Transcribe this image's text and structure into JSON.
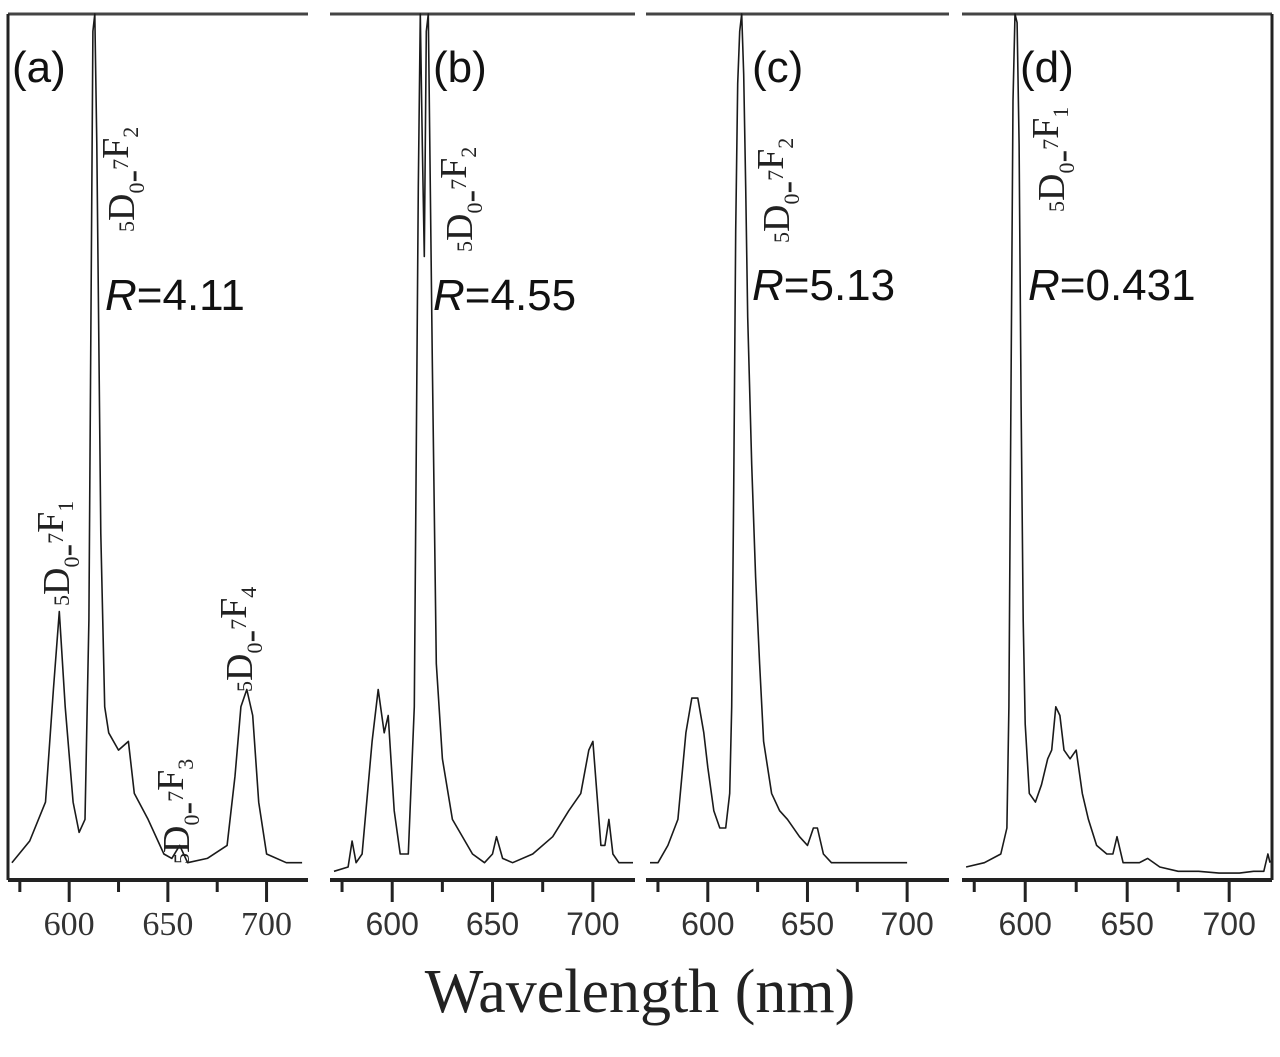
{
  "chart_data": {
    "type": "line",
    "xlabel": "Wavelength (nm)",
    "ylabel": "",
    "grid": false,
    "line_color": "#1a1a1a",
    "panels": [
      {
        "label": "(a)",
        "ratio_prefix": "R",
        "ratio_value": "=4.11",
        "xlim": [
          569,
          721
        ],
        "xticks": [
          600,
          650,
          700
        ],
        "minor_ticks": [
          575,
          625,
          675
        ],
        "annotations": [
          {
            "pre": "5",
            "mid": "D",
            "sub1": "0",
            "dash": "-",
            "sup2": "7",
            "f": "F",
            "sub2": "2"
          },
          {
            "pre": "5",
            "mid": "D",
            "sub1": "0",
            "dash": "-",
            "sup2": "7",
            "f": "F",
            "sub2": "1"
          },
          {
            "pre": "5",
            "mid": "D",
            "sub1": "0",
            "dash": "-",
            "sup2": "7",
            "f": "F",
            "sub2": "3"
          },
          {
            "pre": "5",
            "mid": "D",
            "sub1": "0",
            "dash": "-",
            "sup2": "7",
            "f": "F",
            "sub2": "4"
          }
        ],
        "x": [
          571,
          580,
          588,
          592,
          595,
          598,
          602,
          605,
          608,
          610,
          612,
          613,
          614,
          616,
          618,
          620,
          625,
          630,
          633,
          640,
          648,
          652,
          656,
          660,
          670,
          680,
          684,
          687,
          690,
          693,
          696,
          700,
          710,
          718
        ],
        "y": [
          0.02,
          0.045,
          0.09,
          0.22,
          0.31,
          0.2,
          0.09,
          0.055,
          0.07,
          0.3,
          0.98,
          1.0,
          0.85,
          0.4,
          0.2,
          0.17,
          0.15,
          0.16,
          0.1,
          0.07,
          0.03,
          0.025,
          0.04,
          0.02,
          0.025,
          0.04,
          0.12,
          0.2,
          0.22,
          0.19,
          0.09,
          0.03,
          0.02,
          0.02
        ]
      },
      {
        "label": "(b)",
        "ratio_prefix": "R",
        "ratio_value": "=4.55",
        "xlim": [
          569,
          721
        ],
        "xticks": [
          600,
          650,
          700
        ],
        "minor_ticks": [
          575,
          625,
          675
        ],
        "annotations": [
          {
            "pre": "5",
            "mid": "D",
            "sub1": "0",
            "dash": "-",
            "sup2": "7",
            "f": "F",
            "sub2": "2"
          }
        ],
        "x": [
          571,
          578,
          580,
          582,
          585,
          590,
          593,
          596,
          598,
          601,
          604,
          608,
          611,
          613,
          614,
          615,
          616,
          617,
          618,
          620,
          622,
          625,
          630,
          640,
          646,
          650,
          652,
          655,
          660,
          670,
          680,
          688,
          694,
          698,
          700,
          702,
          704,
          706,
          708,
          710,
          713,
          720
        ],
        "y": [
          0.01,
          0.015,
          0.045,
          0.02,
          0.03,
          0.16,
          0.22,
          0.17,
          0.19,
          0.08,
          0.03,
          0.03,
          0.2,
          0.8,
          1.0,
          0.85,
          0.72,
          0.98,
          1.0,
          0.6,
          0.25,
          0.14,
          0.07,
          0.03,
          0.02,
          0.03,
          0.05,
          0.025,
          0.02,
          0.03,
          0.05,
          0.08,
          0.1,
          0.15,
          0.16,
          0.1,
          0.04,
          0.04,
          0.07,
          0.03,
          0.02,
          0.02
        ]
      },
      {
        "label": "(c)",
        "ratio_prefix": "R",
        "ratio_value": "=5.13",
        "xlim": [
          569,
          721
        ],
        "xticks": [
          600,
          650,
          700
        ],
        "minor_ticks": [
          575,
          625,
          675
        ],
        "annotations": [
          {
            "pre": "5",
            "mid": "D",
            "sub1": "0",
            "dash": "-",
            "sup2": "7",
            "f": "F",
            "sub2": "2"
          }
        ],
        "x": [
          571,
          575,
          580,
          585,
          589,
          592,
          595,
          598,
          600,
          603,
          606,
          609,
          611,
          612,
          613,
          614,
          615,
          616,
          617,
          618,
          619,
          620,
          622,
          624,
          626,
          628,
          632,
          636,
          640,
          646,
          650,
          653,
          655,
          658,
          662,
          670,
          680,
          690,
          700
        ],
        "y": [
          0.02,
          0.02,
          0.04,
          0.07,
          0.17,
          0.21,
          0.21,
          0.17,
          0.13,
          0.08,
          0.06,
          0.06,
          0.1,
          0.2,
          0.45,
          0.75,
          0.92,
          0.98,
          1.0,
          0.93,
          0.8,
          0.65,
          0.48,
          0.35,
          0.25,
          0.16,
          0.1,
          0.08,
          0.07,
          0.05,
          0.04,
          0.06,
          0.06,
          0.03,
          0.02,
          0.02,
          0.02,
          0.02,
          0.02
        ]
      },
      {
        "label": "(d)",
        "ratio_prefix": "R",
        "ratio_value": "=0.431",
        "xlim": [
          569,
          721
        ],
        "xticks": [
          600,
          650,
          700
        ],
        "minor_ticks": [
          575,
          625,
          675
        ],
        "annotations": [
          {
            "pre": "5",
            "mid": "D",
            "sub1": "0",
            "dash": "-",
            "sup2": "7",
            "f": "F",
            "sub2": "1"
          }
        ],
        "x": [
          571,
          580,
          588,
          591,
          592,
          593,
          594,
          595,
          596,
          597,
          598,
          599,
          600,
          602,
          605,
          608,
          611,
          613,
          615,
          617,
          619,
          622,
          625,
          628,
          631,
          635,
          640,
          643,
          645,
          648,
          652,
          656,
          660,
          666,
          675,
          685,
          695,
          705,
          712,
          717,
          719,
          720
        ],
        "y": [
          0.015,
          0.02,
          0.03,
          0.06,
          0.2,
          0.55,
          0.9,
          1.0,
          0.99,
          0.85,
          0.55,
          0.3,
          0.18,
          0.1,
          0.09,
          0.11,
          0.14,
          0.15,
          0.2,
          0.19,
          0.15,
          0.14,
          0.15,
          0.1,
          0.07,
          0.04,
          0.03,
          0.03,
          0.05,
          0.02,
          0.02,
          0.02,
          0.025,
          0.015,
          0.01,
          0.01,
          0.008,
          0.008,
          0.01,
          0.01,
          0.03,
          0.02
        ]
      }
    ]
  }
}
